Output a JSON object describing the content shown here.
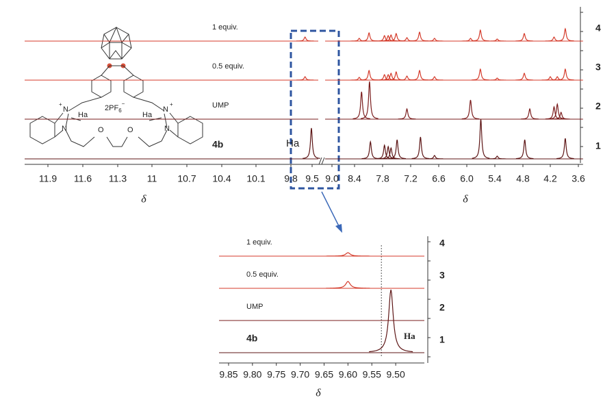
{
  "chart_data": [
    {
      "type": "spectrum",
      "xlabel": "δ",
      "xlim": [
        12.1,
        3.5
      ],
      "xticks": [
        11.9,
        11.6,
        11.3,
        11.0,
        10.7,
        10.4,
        10.1,
        9.8,
        9.5,
        {
          "value": 9,
          "label": "9.0"
        },
        8.4,
        7.8,
        7.2,
        6.6,
        {
          "value": 6,
          "label": "6.0"
        },
        5.4,
        4.8,
        4.2,
        3.6
      ],
      "annotation": "Ha",
      "series": [
        {
          "name": "1 equiv.",
          "trace": "4",
          "color": "#d43a2a",
          "x": [
            9.6,
            8.3,
            8.09,
            7.76,
            7.68,
            7.62,
            7.51,
            7.28,
            7.01,
            6.69,
            5.92,
            5.71,
            5.35,
            4.77,
            4.12,
            3.88
          ],
          "values": [
            6,
            4,
            12,
            8,
            8,
            9,
            11,
            5,
            13,
            4,
            4,
            16,
            3,
            11,
            6,
            18
          ]
        },
        {
          "name": "0.5 equiv.",
          "trace": "3",
          "color": "#d43a2a",
          "x": [
            9.6,
            8.3,
            8.09,
            7.76,
            7.68,
            7.62,
            7.51,
            7.28,
            7.01,
            6.69,
            5.71,
            5.35,
            4.77,
            4.2,
            4.05,
            3.88
          ],
          "values": [
            5,
            4,
            14,
            8,
            8,
            10,
            12,
            6,
            14,
            5,
            16,
            3,
            10,
            5,
            5,
            16
          ]
        },
        {
          "name": "UMP",
          "trace": "2",
          "color": "#7a1c1c",
          "x": [
            8.25,
            8.08,
            7.28,
            5.92,
            4.65,
            4.12,
            4.05,
            3.97
          ],
          "values": [
            40,
            55,
            15,
            28,
            15,
            18,
            22,
            10
          ]
        },
        {
          "name": "4b",
          "trace": "1",
          "color": "#5c1414",
          "x": [
            9.51,
            8.06,
            7.76,
            7.68,
            7.62,
            7.49,
            6.99,
            6.69,
            5.7,
            5.35,
            4.76,
            3.88
          ],
          "values": [
            45,
            25,
            20,
            18,
            16,
            28,
            32,
            5,
            58,
            4,
            28,
            30
          ]
        }
      ]
    },
    {
      "type": "spectrum",
      "xlabel": "δ",
      "xlim": [
        9.87,
        9.44
      ],
      "xticks": [
        9.85,
        {
          "value": 9.8,
          "label": "9.80"
        },
        9.75,
        {
          "value": 9.7,
          "label": "9.70"
        },
        9.65,
        {
          "value": 9.6,
          "label": "9.60"
        },
        9.55,
        {
          "value": 9.5,
          "label": "9.50"
        }
      ],
      "ref_line": 9.53,
      "annotation": "Ha",
      "series": [
        {
          "name": "1 equiv.",
          "trace": "4",
          "color": "#d43a2a",
          "x": [
            9.6
          ],
          "values": [
            5
          ]
        },
        {
          "name": "0.5 equiv.",
          "trace": "3",
          "color": "#d43a2a",
          "x": [
            9.6
          ],
          "values": [
            10
          ]
        },
        {
          "name": "UMP",
          "trace": "2",
          "color": "#7a1c1c",
          "x": [],
          "values": []
        },
        {
          "name": "4b",
          "trace": "1",
          "color": "#5c1414",
          "x": [
            9.51
          ],
          "values": [
            92
          ]
        }
      ]
    }
  ],
  "structure": {
    "atoms": [
      "N",
      "+",
      "Ha",
      "Ha",
      "N",
      "+",
      "N",
      "N",
      "O",
      "O"
    ],
    "counterion": {
      "text": "2PF",
      "sub": "6",
      "sup": "−"
    }
  }
}
